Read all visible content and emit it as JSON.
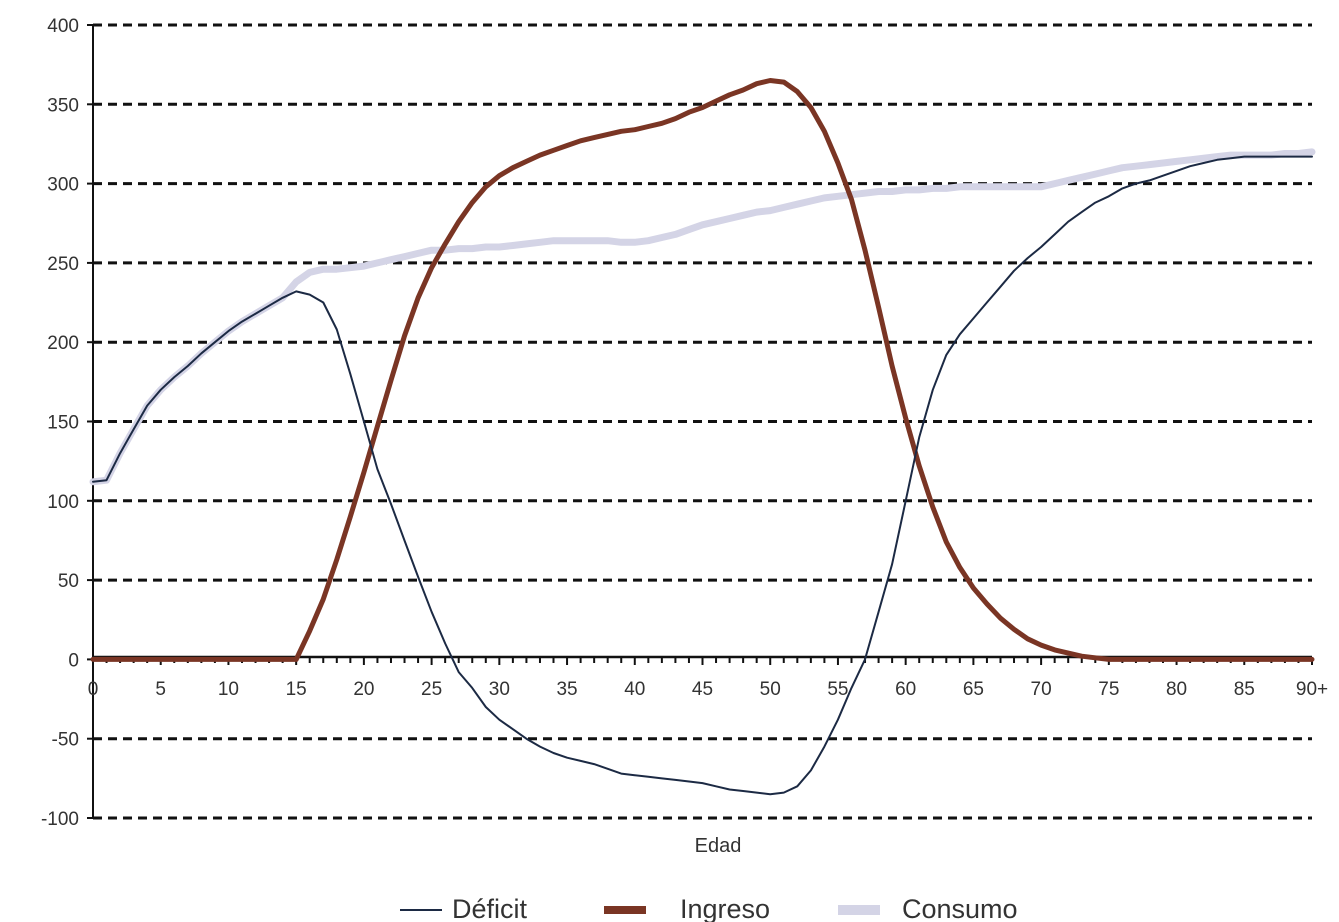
{
  "chart_data": {
    "type": "line",
    "title": "",
    "xlabel": "Edad",
    "ylabel": "",
    "xlim": [
      0,
      90
    ],
    "ylim": [
      -100,
      400
    ],
    "y_ticks": [
      -100,
      -50,
      0,
      50,
      100,
      150,
      200,
      250,
      300,
      350,
      400
    ],
    "y_tick_labels": [
      "-100",
      "-50",
      "0",
      "50",
      "100",
      "150",
      "200",
      "250",
      "300",
      "350",
      "400"
    ],
    "x_ticks": [
      0,
      5,
      10,
      15,
      20,
      25,
      30,
      35,
      40,
      45,
      50,
      55,
      60,
      65,
      70,
      75,
      80,
      85,
      90
    ],
    "x_tick_labels": [
      "0",
      "5",
      "10",
      "15",
      "20",
      "25",
      "30",
      "35",
      "40",
      "45",
      "50",
      "55",
      "60",
      "65",
      "70",
      "75",
      "80",
      "85",
      "90+"
    ],
    "grid": "horizontal-dashed",
    "legend_position": "bottom",
    "x": [
      0,
      1,
      2,
      3,
      4,
      5,
      6,
      7,
      8,
      9,
      10,
      11,
      12,
      13,
      14,
      15,
      16,
      17,
      18,
      19,
      20,
      21,
      22,
      23,
      24,
      25,
      26,
      27,
      28,
      29,
      30,
      31,
      32,
      33,
      34,
      35,
      36,
      37,
      38,
      39,
      40,
      41,
      42,
      43,
      44,
      45,
      46,
      47,
      48,
      49,
      50,
      51,
      52,
      53,
      54,
      55,
      56,
      57,
      58,
      59,
      60,
      61,
      62,
      63,
      64,
      65,
      66,
      67,
      68,
      69,
      70,
      71,
      72,
      73,
      74,
      75,
      76,
      77,
      78,
      79,
      80,
      81,
      82,
      83,
      84,
      85,
      86,
      87,
      88,
      89,
      90
    ],
    "series": [
      {
        "name": "Déficit",
        "color": "#1c2a44",
        "width": 2,
        "values": [
          112,
          113,
          130,
          145,
          160,
          170,
          178,
          185,
          193,
          200,
          207,
          213,
          218,
          223,
          228,
          232,
          230,
          225,
          208,
          180,
          150,
          120,
          98,
          75,
          52,
          30,
          10,
          -8,
          -18,
          -30,
          -38,
          -44,
          -50,
          -55,
          -59,
          -62,
          -64,
          -66,
          -69,
          -72,
          -73,
          -74,
          -75,
          -76,
          -77,
          -78,
          -80,
          -82,
          -83,
          -84,
          -85,
          -84,
          -80,
          -70,
          -55,
          -38,
          -18,
          0,
          30,
          60,
          100,
          140,
          170,
          192,
          205,
          215,
          225,
          235,
          245,
          253,
          260,
          268,
          276,
          282,
          288,
          292,
          297,
          300,
          302,
          305,
          308,
          311,
          313,
          315,
          316,
          317,
          317,
          317,
          317,
          317,
          317
        ]
      },
      {
        "name": "Ingreso",
        "color": "#7a3524",
        "width": 5,
        "values": [
          0,
          0,
          0,
          0,
          0,
          0,
          0,
          0,
          0,
          0,
          0,
          0,
          0,
          0,
          0,
          0,
          18,
          38,
          63,
          90,
          118,
          147,
          176,
          204,
          228,
          247,
          262,
          276,
          288,
          298,
          305,
          310,
          314,
          318,
          321,
          324,
          327,
          329,
          331,
          333,
          334,
          336,
          338,
          341,
          345,
          348,
          352,
          356,
          359,
          363,
          365,
          364,
          358,
          348,
          333,
          313,
          290,
          258,
          222,
          185,
          152,
          122,
          96,
          74,
          58,
          45,
          35,
          26,
          19,
          13,
          9,
          6,
          4,
          2,
          1,
          0,
          0,
          0,
          0,
          0,
          0,
          0,
          0,
          0,
          0,
          0,
          0,
          0,
          0,
          0,
          0
        ]
      },
      {
        "name": "Consumo",
        "color": "#d4d4e6",
        "width": 7,
        "values": [
          112,
          113,
          130,
          145,
          160,
          170,
          178,
          185,
          193,
          200,
          207,
          213,
          218,
          223,
          228,
          238,
          244,
          246,
          246,
          247,
          248,
          250,
          252,
          254,
          256,
          258,
          258,
          259,
          259,
          260,
          260,
          261,
          262,
          263,
          264,
          264,
          264,
          264,
          264,
          263,
          263,
          264,
          266,
          268,
          271,
          274,
          276,
          278,
          280,
          282,
          283,
          285,
          287,
          289,
          291,
          292,
          293,
          294,
          295,
          295,
          296,
          296,
          297,
          297,
          298,
          298,
          298,
          298,
          298,
          298,
          298,
          300,
          302,
          304,
          306,
          308,
          310,
          311,
          312,
          313,
          314,
          315,
          316,
          317,
          318,
          318,
          318,
          318,
          319,
          319,
          320
        ]
      }
    ]
  }
}
